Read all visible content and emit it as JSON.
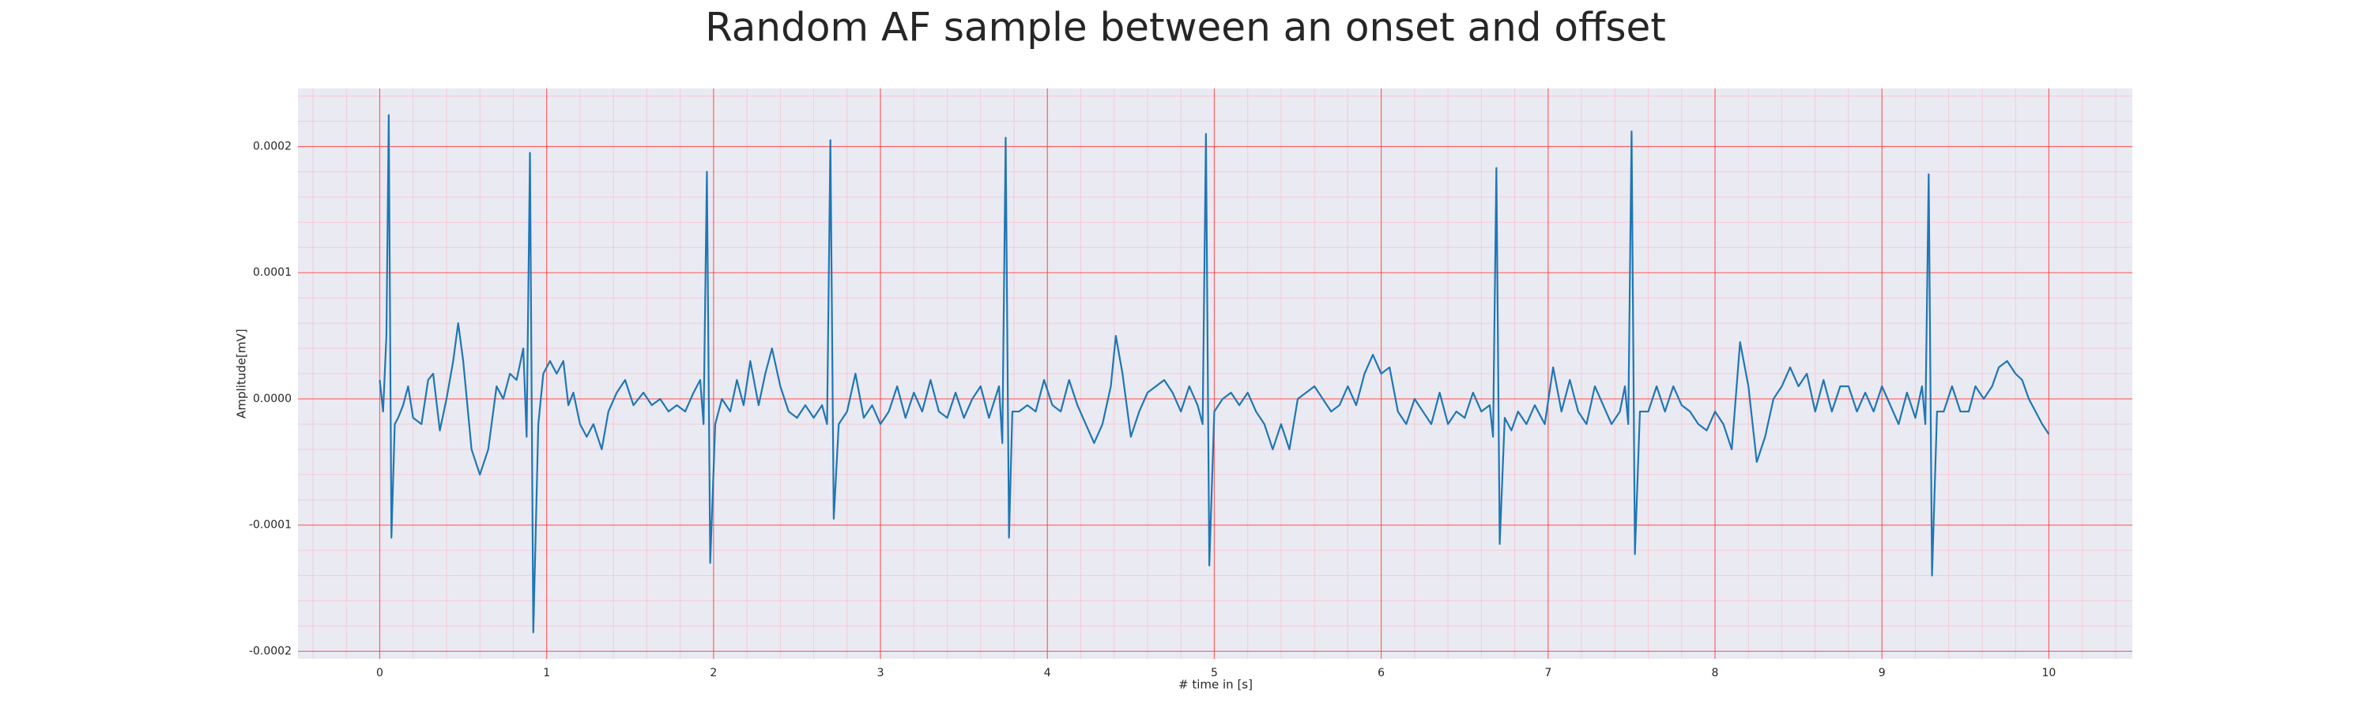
{
  "chart_data": {
    "type": "line",
    "title": "Random AF sample between an onset and offset",
    "xlabel": "# time in [s]",
    "ylabel": "Amplitude[mV]",
    "color": "#1f77b4",
    "grid": true,
    "minor_grid": true,
    "xlim": [
      -0.49,
      10.5
    ],
    "ylim": [
      -0.000206,
      0.000246
    ],
    "xticks": [
      0,
      1,
      2,
      3,
      4,
      5,
      6,
      7,
      8,
      9,
      10
    ],
    "yticks": [
      {
        "value": -0.0002,
        "label": "-0.0002"
      },
      {
        "value": -0.0001,
        "label": "-0.0001"
      },
      {
        "value": 0,
        "label": "0.0000"
      },
      {
        "value": 0.0001,
        "label": "0.0001"
      },
      {
        "value": 0.0002,
        "label": "0.0002"
      }
    ],
    "x": [
      0.0,
      0.02,
      0.04,
      0.054,
      0.07,
      0.09,
      0.11,
      0.14,
      0.17,
      0.2,
      0.25,
      0.29,
      0.32,
      0.36,
      0.4,
      0.44,
      0.47,
      0.5,
      0.55,
      0.6,
      0.65,
      0.7,
      0.74,
      0.78,
      0.82,
      0.86,
      0.88,
      0.9,
      0.92,
      0.95,
      0.98,
      1.02,
      1.06,
      1.1,
      1.13,
      1.16,
      1.2,
      1.24,
      1.28,
      1.33,
      1.37,
      1.42,
      1.47,
      1.52,
      1.58,
      1.63,
      1.68,
      1.73,
      1.78,
      1.83,
      1.88,
      1.92,
      1.94,
      1.96,
      1.98,
      2.01,
      2.05,
      2.1,
      2.14,
      2.18,
      2.22,
      2.27,
      2.31,
      2.35,
      2.4,
      2.45,
      2.5,
      2.55,
      2.6,
      2.65,
      2.68,
      2.7,
      2.72,
      2.75,
      2.8,
      2.85,
      2.9,
      2.95,
      3.0,
      3.05,
      3.1,
      3.15,
      3.2,
      3.25,
      3.3,
      3.35,
      3.4,
      3.45,
      3.5,
      3.55,
      3.6,
      3.65,
      3.71,
      3.73,
      3.75,
      3.77,
      3.79,
      3.83,
      3.88,
      3.93,
      3.98,
      4.03,
      4.08,
      4.13,
      4.18,
      4.23,
      4.28,
      4.33,
      4.38,
      4.41,
      4.45,
      4.5,
      4.55,
      4.6,
      4.65,
      4.7,
      4.75,
      4.8,
      4.85,
      4.9,
      4.93,
      4.95,
      4.97,
      5.0,
      5.05,
      5.1,
      5.15,
      5.2,
      5.25,
      5.3,
      5.35,
      5.4,
      5.45,
      5.5,
      5.55,
      5.6,
      5.65,
      5.7,
      5.75,
      5.8,
      5.85,
      5.9,
      5.95,
      6.0,
      6.05,
      6.1,
      6.15,
      6.2,
      6.25,
      6.3,
      6.35,
      6.4,
      6.45,
      6.5,
      6.55,
      6.6,
      6.65,
      6.67,
      6.69,
      6.71,
      6.74,
      6.78,
      6.82,
      6.87,
      6.92,
      6.98,
      7.03,
      7.08,
      7.13,
      7.18,
      7.23,
      7.28,
      7.33,
      7.38,
      7.43,
      7.46,
      7.48,
      7.5,
      7.52,
      7.55,
      7.6,
      7.65,
      7.7,
      7.75,
      7.8,
      7.85,
      7.9,
      7.95,
      8.0,
      8.05,
      8.1,
      8.15,
      8.2,
      8.25,
      8.3,
      8.35,
      8.4,
      8.45,
      8.5,
      8.55,
      8.6,
      8.65,
      8.7,
      8.75,
      8.8,
      8.85,
      8.9,
      8.95,
      9.0,
      9.05,
      9.1,
      9.15,
      9.2,
      9.24,
      9.26,
      9.28,
      9.3,
      9.33,
      9.37,
      9.42,
      9.47,
      9.52,
      9.56,
      9.61,
      9.66,
      9.7,
      9.75,
      9.8,
      9.84,
      9.88,
      9.92,
      9.96,
      10.0
    ],
    "values": [
      1.5e-05,
      -1e-05,
      5e-05,
      0.000225,
      -0.00011,
      -2e-05,
      -1.5e-05,
      -5e-06,
      1e-05,
      -1.5e-05,
      -2e-05,
      1.5e-05,
      2e-05,
      -2.5e-05,
      0,
      3e-05,
      6e-05,
      3e-05,
      -4e-05,
      -6e-05,
      -4e-05,
      1e-05,
      0,
      2e-05,
      1.5e-05,
      4e-05,
      -3e-05,
      0.000195,
      -0.000185,
      -2e-05,
      2e-05,
      3e-05,
      2e-05,
      3e-05,
      -5e-06,
      5e-06,
      -2e-05,
      -3e-05,
      -2e-05,
      -4e-05,
      -1e-05,
      5e-06,
      1.5e-05,
      -5e-06,
      5e-06,
      -5e-06,
      0,
      -1e-05,
      -5e-06,
      -1e-05,
      5e-06,
      1.5e-05,
      -2e-05,
      0.00018,
      -0.00013,
      -2e-05,
      0,
      -1e-05,
      1.5e-05,
      -5e-06,
      3e-05,
      -5e-06,
      2e-05,
      4e-05,
      1e-05,
      -1e-05,
      -1.5e-05,
      -5e-06,
      -1.5e-05,
      -5e-06,
      -2e-05,
      0.000205,
      -9.5e-05,
      -2e-05,
      -1e-05,
      2e-05,
      -1.5e-05,
      -5e-06,
      -2e-05,
      -1e-05,
      1e-05,
      -1.5e-05,
      5e-06,
      -1e-05,
      1.5e-05,
      -1e-05,
      -1.5e-05,
      5e-06,
      -1.5e-05,
      0,
      1e-05,
      -1.5e-05,
      1e-05,
      -3.5e-05,
      0.000207,
      -0.00011,
      -1e-05,
      -1e-05,
      -5e-06,
      -1e-05,
      1.5e-05,
      -5e-06,
      -1e-05,
      1.5e-05,
      -5e-06,
      -2e-05,
      -3.5e-05,
      -2e-05,
      1e-05,
      5e-05,
      2e-05,
      -3e-05,
      -1e-05,
      5e-06,
      1e-05,
      1.5e-05,
      5e-06,
      -1e-05,
      1e-05,
      -5e-06,
      -2e-05,
      0.00021,
      -0.000132,
      -1e-05,
      0,
      5e-06,
      -5e-06,
      5e-06,
      -1e-05,
      -2e-05,
      -4e-05,
      -2e-05,
      -4e-05,
      0,
      5e-06,
      1e-05,
      0,
      -1e-05,
      -5e-06,
      1e-05,
      -5e-06,
      2e-05,
      3.5e-05,
      2e-05,
      2.5e-05,
      -1e-05,
      -2e-05,
      0,
      -1e-05,
      -2e-05,
      5e-06,
      -2e-05,
      -1e-05,
      -1.5e-05,
      5e-06,
      -1e-05,
      -5e-06,
      -3e-05,
      0.000183,
      -0.000115,
      -1.5e-05,
      -2.5e-05,
      -1e-05,
      -2e-05,
      -5e-06,
      -2e-05,
      2.5e-05,
      -1e-05,
      1.5e-05,
      -1e-05,
      -2e-05,
      1e-05,
      -5e-06,
      -2e-05,
      -1e-05,
      1e-05,
      -2e-05,
      0.000212,
      -0.000123,
      -1e-05,
      -1e-05,
      1e-05,
      -1e-05,
      1e-05,
      -5e-06,
      -1e-05,
      -2e-05,
      -2.5e-05,
      -1e-05,
      -2e-05,
      -4e-05,
      4.5e-05,
      1e-05,
      -5e-05,
      -3e-05,
      0,
      1e-05,
      2.5e-05,
      1e-05,
      2e-05,
      -1e-05,
      1.5e-05,
      -1e-05,
      1e-05,
      1e-05,
      -1e-05,
      5e-06,
      -1e-05,
      1e-05,
      -5e-06,
      -2e-05,
      5e-06,
      -1.5e-05,
      1e-05,
      -2e-05,
      0.000178,
      -0.00014,
      -1e-05,
      -1e-05,
      1e-05,
      -1e-05,
      -1e-05,
      1e-05,
      0,
      1e-05,
      2.5e-05,
      3e-05,
      2e-05,
      1.5e-05,
      0,
      -1e-05,
      -2e-05,
      -2.8e-05
    ]
  }
}
